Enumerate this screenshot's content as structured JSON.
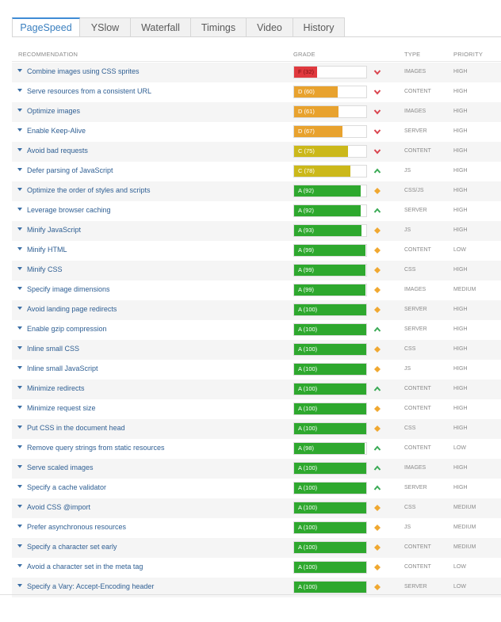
{
  "tabs": [
    "PageSpeed",
    "YSlow",
    "Waterfall",
    "Timings",
    "Video",
    "History"
  ],
  "active_tab": 0,
  "headers": {
    "recommendation": "RECOMMENDATION",
    "grade": "GRADE",
    "type": "TYPE",
    "priority": "PRIORITY"
  },
  "colors": {
    "F": "#e0393e",
    "D": "#e8a22e",
    "C": "#cbb81a",
    "A": "#2ea82e",
    "up": "#3aaa55",
    "down": "#d9444e",
    "neutral": "#f0a830"
  },
  "rows": [
    {
      "name": "Combine images using CSS sprites",
      "letter": "F",
      "score": 32,
      "grade": "F (32)",
      "trend": "down",
      "type": "IMAGES",
      "priority": "HIGH"
    },
    {
      "name": "Serve resources from a consistent URL",
      "letter": "D",
      "score": 60,
      "grade": "D (60)",
      "trend": "down",
      "type": "CONTENT",
      "priority": "HIGH"
    },
    {
      "name": "Optimize images",
      "letter": "D",
      "score": 61,
      "grade": "D (61)",
      "trend": "down",
      "type": "IMAGES",
      "priority": "HIGH"
    },
    {
      "name": "Enable Keep-Alive",
      "letter": "D",
      "score": 67,
      "grade": "D (67)",
      "trend": "down",
      "type": "SERVER",
      "priority": "HIGH"
    },
    {
      "name": "Avoid bad requests",
      "letter": "C",
      "score": 75,
      "grade": "C (75)",
      "trend": "down",
      "type": "CONTENT",
      "priority": "HIGH"
    },
    {
      "name": "Defer parsing of JavaScript",
      "letter": "C",
      "score": 78,
      "grade": "C (78)",
      "trend": "up",
      "type": "JS",
      "priority": "HIGH"
    },
    {
      "name": "Optimize the order of styles and scripts",
      "letter": "A",
      "score": 92,
      "grade": "A (92)",
      "trend": "neutral",
      "type": "CSS/JS",
      "priority": "HIGH"
    },
    {
      "name": "Leverage browser caching",
      "letter": "A",
      "score": 92,
      "grade": "A (92)",
      "trend": "up",
      "type": "SERVER",
      "priority": "HIGH"
    },
    {
      "name": "Minify JavaScript",
      "letter": "A",
      "score": 93,
      "grade": "A (93)",
      "trend": "neutral",
      "type": "JS",
      "priority": "HIGH"
    },
    {
      "name": "Minify HTML",
      "letter": "A",
      "score": 99,
      "grade": "A (99)",
      "trend": "neutral",
      "type": "CONTENT",
      "priority": "LOW"
    },
    {
      "name": "Minify CSS",
      "letter": "A",
      "score": 99,
      "grade": "A (99)",
      "trend": "neutral",
      "type": "CSS",
      "priority": "HIGH"
    },
    {
      "name": "Specify image dimensions",
      "letter": "A",
      "score": 99,
      "grade": "A (99)",
      "trend": "neutral",
      "type": "IMAGES",
      "priority": "MEDIUM"
    },
    {
      "name": "Avoid landing page redirects",
      "letter": "A",
      "score": 100,
      "grade": "A (100)",
      "trend": "neutral",
      "type": "SERVER",
      "priority": "HIGH"
    },
    {
      "name": "Enable gzip compression",
      "letter": "A",
      "score": 100,
      "grade": "A (100)",
      "trend": "up",
      "type": "SERVER",
      "priority": "HIGH"
    },
    {
      "name": "Inline small CSS",
      "letter": "A",
      "score": 100,
      "grade": "A (100)",
      "trend": "neutral",
      "type": "CSS",
      "priority": "HIGH"
    },
    {
      "name": "Inline small JavaScript",
      "letter": "A",
      "score": 100,
      "grade": "A (100)",
      "trend": "neutral",
      "type": "JS",
      "priority": "HIGH"
    },
    {
      "name": "Minimize redirects",
      "letter": "A",
      "score": 100,
      "grade": "A (100)",
      "trend": "up",
      "type": "CONTENT",
      "priority": "HIGH"
    },
    {
      "name": "Minimize request size",
      "letter": "A",
      "score": 100,
      "grade": "A (100)",
      "trend": "neutral",
      "type": "CONTENT",
      "priority": "HIGH"
    },
    {
      "name": "Put CSS in the document head",
      "letter": "A",
      "score": 100,
      "grade": "A (100)",
      "trend": "neutral",
      "type": "CSS",
      "priority": "HIGH"
    },
    {
      "name": "Remove query strings from static resources",
      "letter": "A",
      "score": 98,
      "grade": "A (98)",
      "trend": "up",
      "type": "CONTENT",
      "priority": "LOW"
    },
    {
      "name": "Serve scaled images",
      "letter": "A",
      "score": 100,
      "grade": "A (100)",
      "trend": "up",
      "type": "IMAGES",
      "priority": "HIGH"
    },
    {
      "name": "Specify a cache validator",
      "letter": "A",
      "score": 100,
      "grade": "A (100)",
      "trend": "up",
      "type": "SERVER",
      "priority": "HIGH"
    },
    {
      "name": "Avoid CSS @import",
      "letter": "A",
      "score": 100,
      "grade": "A (100)",
      "trend": "neutral",
      "type": "CSS",
      "priority": "MEDIUM"
    },
    {
      "name": "Prefer asynchronous resources",
      "letter": "A",
      "score": 100,
      "grade": "A (100)",
      "trend": "neutral",
      "type": "JS",
      "priority": "MEDIUM"
    },
    {
      "name": "Specify a character set early",
      "letter": "A",
      "score": 100,
      "grade": "A (100)",
      "trend": "neutral",
      "type": "CONTENT",
      "priority": "MEDIUM"
    },
    {
      "name": "Avoid a character set in the meta tag",
      "letter": "A",
      "score": 100,
      "grade": "A (100)",
      "trend": "neutral",
      "type": "CONTENT",
      "priority": "LOW"
    },
    {
      "name": "Specify a Vary: Accept-Encoding header",
      "letter": "A",
      "score": 100,
      "grade": "A (100)",
      "trend": "neutral",
      "type": "SERVER",
      "priority": "LOW"
    }
  ]
}
